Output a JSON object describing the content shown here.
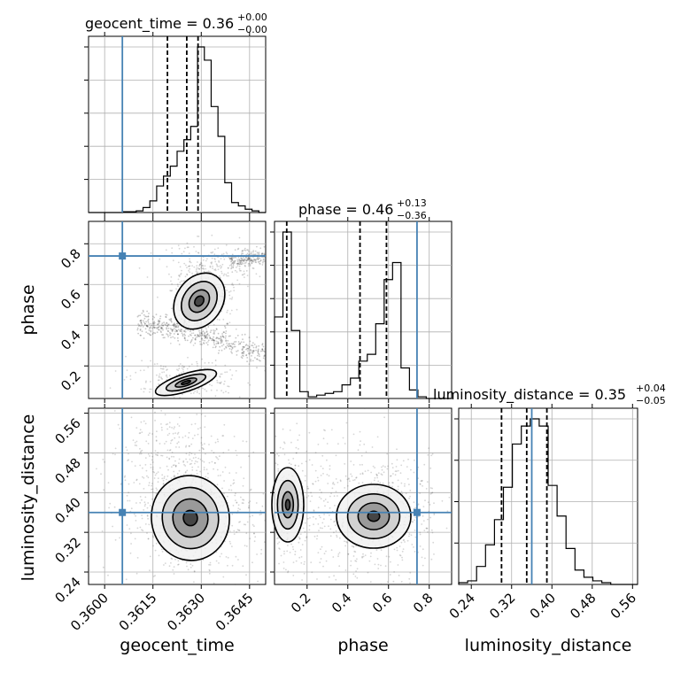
{
  "chart_data": {
    "type": "corner",
    "parameters": [
      "geocent_time",
      "phase",
      "luminosity_distance"
    ],
    "truths": {
      "geocent_time": 0.36055,
      "phase": 0.74,
      "luminosity_distance": 0.36
    },
    "titles": [
      {
        "param": "geocent_time",
        "text": "geocent_time = 0.36",
        "plus": "+0.00",
        "minus": "−0.00"
      },
      {
        "param": "phase",
        "text": "phase = 0.46",
        "plus": "+0.13",
        "minus": "−0.36"
      },
      {
        "param": "luminosity_distance",
        "text": "luminosity_distance = 0.35",
        "plus": "+0.04",
        "minus": "−0.05"
      }
    ],
    "xlabels": {
      "geocent_time": "geocent_time",
      "phase": "phase",
      "luminosity_distance": "luminosity_distance"
    },
    "ylabels": {
      "phase": "phase",
      "luminosity_distance": "luminosity_distance"
    },
    "ticks": {
      "geocent_time": [
        "0.3600",
        "0.3615",
        "0.3630",
        "0.3645"
      ],
      "phase_x": [
        "0.2",
        "0.4",
        "0.6",
        "0.8"
      ],
      "phase_y": [
        "0.2",
        "0.4",
        "0.6",
        "0.8"
      ],
      "luminosity_distance_x": [
        "0.24",
        "0.32",
        "0.40",
        "0.48",
        "0.56"
      ],
      "luminosity_distance_y": [
        "0.24",
        "0.32",
        "0.40",
        "0.48",
        "0.56"
      ]
    },
    "ranges": {
      "geocent_time": [
        0.3595,
        0.365
      ],
      "phase": [
        0.04,
        0.91
      ],
      "luminosity_distance": [
        0.215,
        0.57
      ]
    },
    "histograms": {
      "geocent_time": {
        "edges_min": 0.3595,
        "edges_max": 0.365,
        "counts": [
          0,
          0,
          0,
          0,
          0,
          0.5,
          0.5,
          1,
          3,
          7,
          16,
          22,
          28,
          37,
          44,
          52,
          100,
          92,
          64,
          46,
          18,
          6,
          4,
          2,
          1,
          0
        ]
      },
      "phase": {
        "edges_min": 0.04,
        "edges_max": 0.91,
        "counts": [
          48,
          98,
          40,
          4,
          1,
          2,
          3,
          4,
          8,
          12,
          22,
          26,
          44,
          70,
          80,
          18,
          5,
          1,
          0,
          0,
          0
        ]
      },
      "luminosity_distance": {
        "edges_min": 0.215,
        "edges_max": 0.57,
        "counts": [
          1,
          2,
          10,
          22,
          36,
          54,
          78,
          88,
          92,
          88,
          55,
          38,
          20,
          8,
          4,
          2,
          1,
          0,
          0,
          0
        ]
      }
    },
    "quantiles": {
      "geocent_time": [
        0.36195,
        0.36255,
        0.3629
      ],
      "phase": [
        0.1,
        0.46,
        0.59
      ],
      "luminosity_distance": [
        0.3,
        0.35,
        0.39
      ]
    },
    "pairs": [
      {
        "x": "geocent_time",
        "y": "phase"
      },
      {
        "x": "geocent_time",
        "y": "luminosity_distance"
      },
      {
        "x": "phase",
        "y": "luminosity_distance"
      }
    ],
    "colors": {
      "truth": "#4682b4",
      "hist": "#000000",
      "grid": "#b0b0b0",
      "density": "#444444"
    }
  }
}
